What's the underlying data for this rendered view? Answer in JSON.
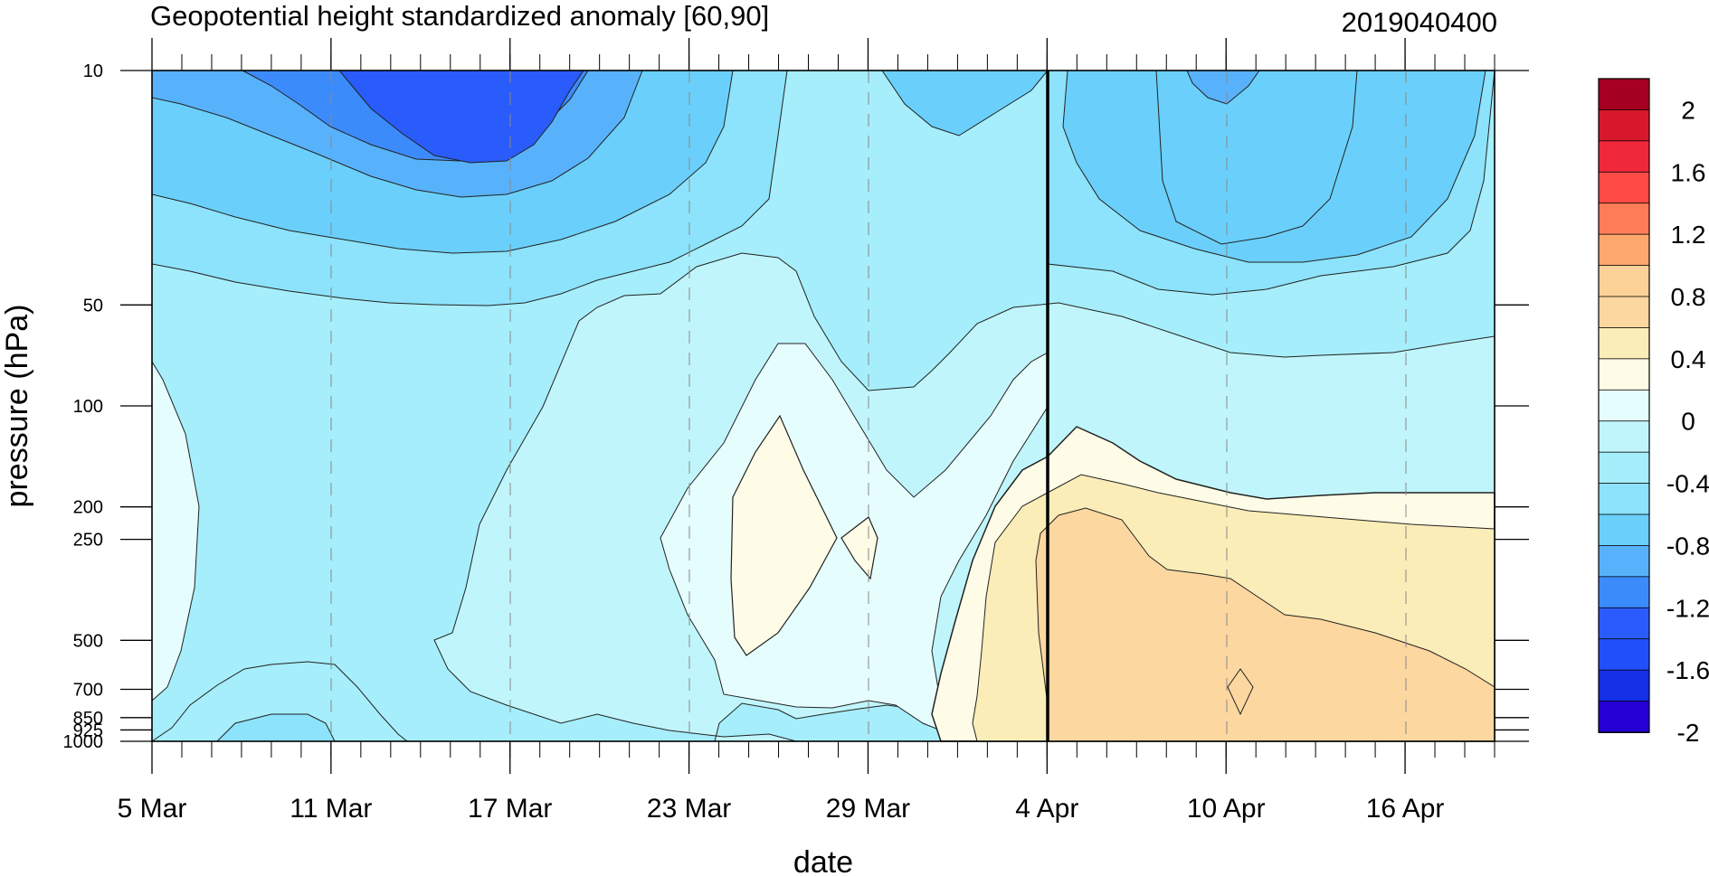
{
  "chart_data": {
    "type": "heatmap",
    "title": "Geopotential height standardized anomaly [60,90]",
    "title_right": "2019040400",
    "xlabel": "date",
    "ylabel": "pressure (hPa)",
    "x_ticks": [
      "5 Mar",
      "11 Mar",
      "17 Mar",
      "23 Mar",
      "29 Mar",
      "4 Apr",
      "10 Apr",
      "16 Apr"
    ],
    "x_range": [
      "2019-03-05",
      "2019-04-19"
    ],
    "y_levels": [
      10,
      50,
      100,
      200,
      250,
      500,
      700,
      850,
      925,
      1000
    ],
    "y_scale": "log, inverted",
    "analysis_date_marker": "4 Apr",
    "colorbar": {
      "labels": [
        "2",
        "1.6",
        "1.2",
        "0.8",
        "0.4",
        "0",
        "-0.4",
        "-0.8",
        "-1.2",
        "-1.6",
        "-2"
      ],
      "colors": [
        "#a50021",
        "#d6182a",
        "#f0283c",
        "#ff4a46",
        "#ff7d56",
        "#ffa86e",
        "#fcd298",
        "#fdd7a0",
        "#fbedb8",
        "#fefbe6",
        "#e6fdfd",
        "#c0f6fb",
        "#a6eefb",
        "#8ce3fb",
        "#6ad0fb",
        "#58b2fb",
        "#3c8bfb",
        "#2a5cfb",
        "#2150fb",
        "#1530e6",
        "#2400d4"
      ]
    },
    "grid": "dashed vertical lines at date ticks"
  }
}
